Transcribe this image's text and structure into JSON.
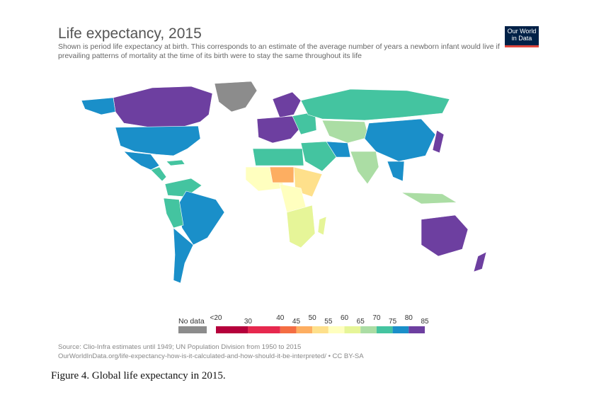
{
  "header": {
    "title": "Life expectancy, 2015",
    "subtitle": "Shown is period life expectancy at birth. This corresponds to an estimate of the average number of years a newborn infant would live if prevailing patterns of mortality at the time of its birth were to stay the same throughout its life"
  },
  "logo": {
    "line1": "Our World",
    "line2": "in Data",
    "bg_color": "#002147",
    "accent_color": "#e0473d"
  },
  "legend": {
    "nodata_label": "No data",
    "nodata_color": "#8c8c8c",
    "bins": [
      {
        "from": 20,
        "to": 30,
        "color": "#b5003b"
      },
      {
        "from": 30,
        "to": 40,
        "color": "#e6284e"
      },
      {
        "from": 40,
        "to": 45,
        "color": "#f46d43"
      },
      {
        "from": 45,
        "to": 50,
        "color": "#fdae61"
      },
      {
        "from": 50,
        "to": 55,
        "color": "#fee08b"
      },
      {
        "from": 55,
        "to": 60,
        "color": "#ffffbf"
      },
      {
        "from": 60,
        "to": 65,
        "color": "#e6f598"
      },
      {
        "from": 65,
        "to": 70,
        "color": "#abdda4"
      },
      {
        "from": 70,
        "to": 75,
        "color": "#44c4a0"
      },
      {
        "from": 75,
        "to": 80,
        "color": "#1a8fc9"
      },
      {
        "from": 80,
        "to": 85,
        "color": "#6d3fa0"
      }
    ],
    "ticks_upper": [
      "<20",
      "40",
      "50",
      "60",
      "70",
      "80"
    ],
    "ticks_lower": [
      "30",
      "45",
      "55",
      "65",
      "75",
      "85"
    ]
  },
  "map_colors": {
    "purple": "#6d3fa0",
    "blue": "#1a8fc9",
    "teal": "#44c4a0",
    "green": "#abdda4",
    "lime": "#e6f598",
    "cream": "#ffffbf",
    "yellow": "#fee08b",
    "orange": "#fdae61",
    "grey": "#8c8c8c"
  },
  "source": {
    "line1": "Source: Clio-Infra estimates until 1949; UN Population Division from 1950 to 2015",
    "line2": "OurWorldInData.org/life-expectancy-how-is-it-calculated-and-how-should-it-be-interpreted/ • CC BY-SA"
  },
  "caption": "Figure 4. Global life expectancy in 2015."
}
